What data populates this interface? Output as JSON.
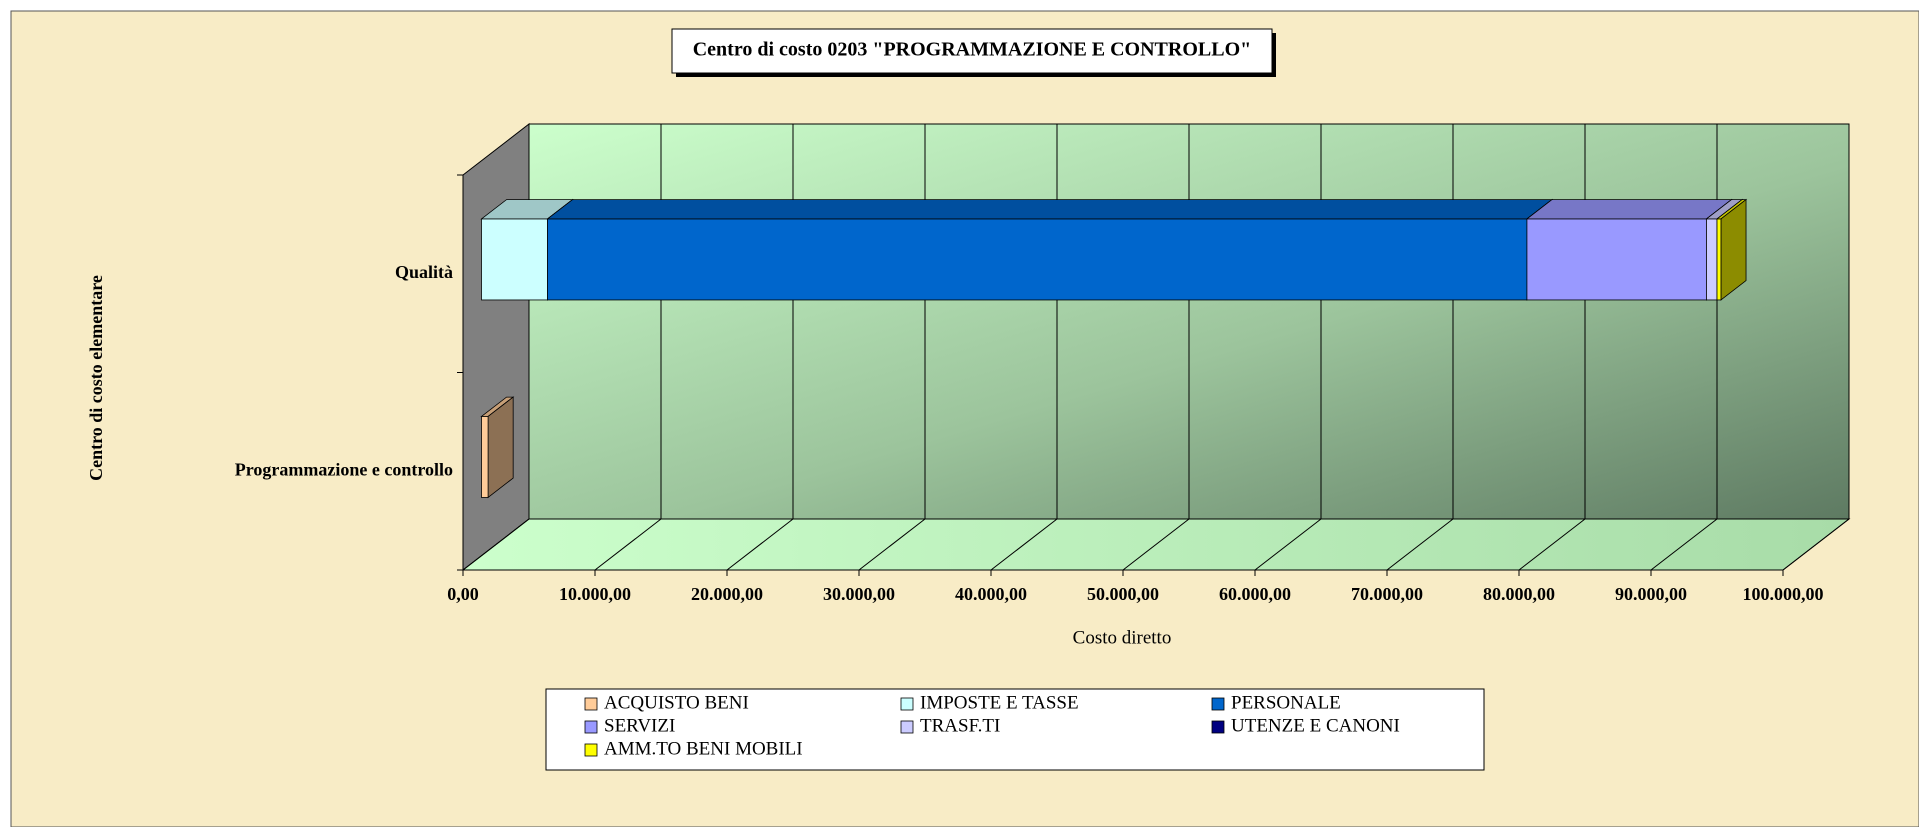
{
  "chart_data": {
    "type": "bar3d_stacked_horizontal",
    "title": "Centro di costo 0203 \"PROGRAMMAZIONE E CONTROLLO\"",
    "x_label": "Costo diretto",
    "y_label": "Centro di costo elementare",
    "categories": [
      "Programmazione e controllo",
      "Qualità"
    ],
    "series": [
      {
        "name": "ACQUISTO BENI",
        "color": "#ffcc99",
        "values": [
          500,
          0
        ]
      },
      {
        "name": "IMPOSTE E TASSE",
        "color": "#ccffff",
        "values": [
          0,
          5000
        ]
      },
      {
        "name": "PERSONALE",
        "color": "#0066cc",
        "values": [
          0,
          74200
        ]
      },
      {
        "name": "SERVIZI",
        "color": "#9999ff",
        "values": [
          0,
          13600
        ]
      },
      {
        "name": "TRASF.TI",
        "color": "#ccccff",
        "values": [
          0,
          800
        ]
      },
      {
        "name": "UTENZE E CANONI",
        "color": "#000080",
        "values": [
          0,
          0
        ]
      },
      {
        "name": "AMM.TO BENI MOBILI",
        "color": "#ffff00",
        "values": [
          0,
          300
        ]
      }
    ],
    "xlim": [
      0,
      100000
    ],
    "xticks": [
      {
        "value": 0,
        "label": "0,00"
      },
      {
        "value": 10000,
        "label": "10.000,00"
      },
      {
        "value": 20000,
        "label": "20.000,00"
      },
      {
        "value": 30000,
        "label": "30.000,00"
      },
      {
        "value": 40000,
        "label": "40.000,00"
      },
      {
        "value": 50000,
        "label": "50.000,00"
      },
      {
        "value": 60000,
        "label": "60.000,00"
      },
      {
        "value": 70000,
        "label": "70.000,00"
      },
      {
        "value": 80000,
        "label": "80.000,00"
      },
      {
        "value": 90000,
        "label": "90.000,00"
      },
      {
        "value": 100000,
        "label": "100.000,00"
      }
    ],
    "grid": true,
    "legend": "bottom"
  }
}
